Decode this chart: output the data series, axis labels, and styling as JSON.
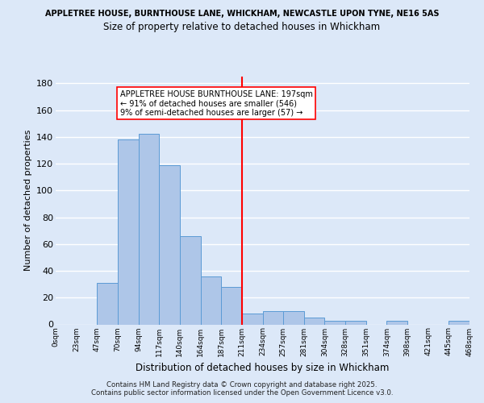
{
  "title_line1": "APPLETREE HOUSE, BURNTHOUSE LANE, WHICKHAM, NEWCASTLE UPON TYNE, NE16 5AS",
  "title_line2": "Size of property relative to detached houses in Whickham",
  "xlabel": "Distribution of detached houses by size in Whickham",
  "ylabel": "Number of detached properties",
  "bin_labels": [
    "0sqm",
    "23sqm",
    "47sqm",
    "70sqm",
    "94sqm",
    "117sqm",
    "140sqm",
    "164sqm",
    "187sqm",
    "211sqm",
    "234sqm",
    "257sqm",
    "281sqm",
    "304sqm",
    "328sqm",
    "351sqm",
    "374sqm",
    "398sqm",
    "421sqm",
    "445sqm",
    "468sqm"
  ],
  "bar_values": [
    0,
    0,
    31,
    138,
    142,
    119,
    66,
    36,
    28,
    8,
    10,
    10,
    5,
    3,
    3,
    0,
    3,
    0,
    0,
    3
  ],
  "bar_color": "#aec6e8",
  "bar_edge_color": "#5b9bd5",
  "vline_label_idx": 8,
  "vline_color": "red",
  "annotation_text": "APPLETREE HOUSE BURNTHOUSE LANE: 197sqm\n← 91% of detached houses are smaller (546)\n9% of semi-detached houses are larger (57) →",
  "ylim": [
    0,
    185
  ],
  "yticks": [
    0,
    20,
    40,
    60,
    80,
    100,
    120,
    140,
    160,
    180
  ],
  "footnote1": "Contains HM Land Registry data © Crown copyright and database right 2025.",
  "footnote2": "Contains public sector information licensed under the Open Government Licence v3.0.",
  "background_color": "#dce8f8",
  "plot_bg_color": "#dce8f8"
}
